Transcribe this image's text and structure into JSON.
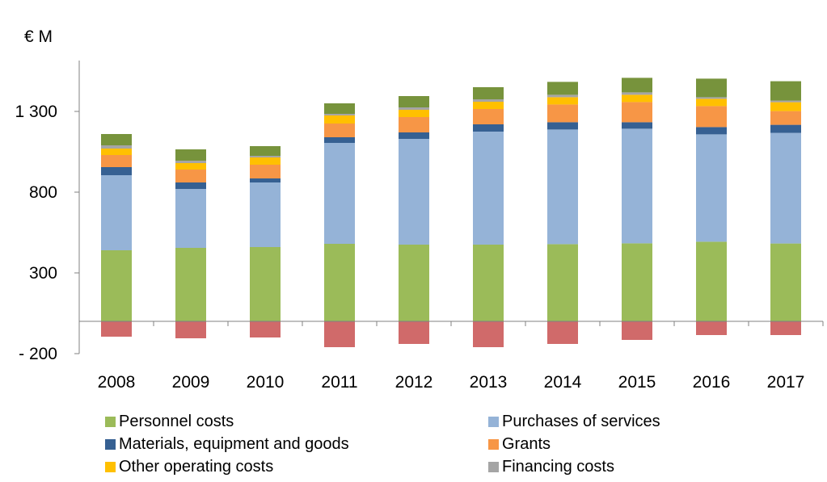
{
  "chart_data": {
    "type": "bar",
    "stacked": true,
    "unit_label": "€ M",
    "categories": [
      "2008",
      "2009",
      "2010",
      "2011",
      "2012",
      "2013",
      "2014",
      "2015",
      "2016",
      "2017"
    ],
    "ylim": [
      -200,
      1800
    ],
    "yticks": [
      -200,
      300,
      800,
      1300
    ],
    "ytick_labels": [
      "- 200",
      "300",
      "800",
      "1 300"
    ],
    "grid": false,
    "legend_position": "bottom",
    "series": [
      {
        "name": "Personnel costs",
        "color": "#9BBB59",
        "values": [
          440,
          455,
          460,
          480,
          475,
          475,
          478,
          483,
          493,
          482
        ]
      },
      {
        "name": "Purchases of services",
        "color": "#95B3D7",
        "values": [
          465,
          365,
          400,
          625,
          655,
          700,
          710,
          710,
          665,
          685
        ]
      },
      {
        "name": "Materials, equipment and goods",
        "color": "#366092",
        "values": [
          50,
          40,
          25,
          35,
          40,
          45,
          45,
          40,
          45,
          50
        ]
      },
      {
        "name": "Grants",
        "color": "#F79646",
        "values": [
          75,
          80,
          85,
          85,
          95,
          95,
          110,
          125,
          130,
          85
        ]
      },
      {
        "name": "Other operating costs",
        "color": "#FFC000",
        "values": [
          40,
          40,
          45,
          50,
          45,
          45,
          45,
          45,
          45,
          55
        ]
      },
      {
        "name": "Financing costs",
        "color": "#A5A5A5",
        "values": [
          20,
          15,
          10,
          10,
          15,
          15,
          15,
          15,
          10,
          10
        ]
      },
      {
        "name": "",
        "color": "#77933C",
        "values": [
          70,
          70,
          60,
          65,
          70,
          75,
          80,
          90,
          115,
          120
        ]
      },
      {
        "name": "",
        "color": "#D06A6A",
        "values": [
          -95,
          -105,
          -100,
          -160,
          -140,
          -160,
          -140,
          -115,
          -85,
          -85
        ]
      }
    ]
  }
}
